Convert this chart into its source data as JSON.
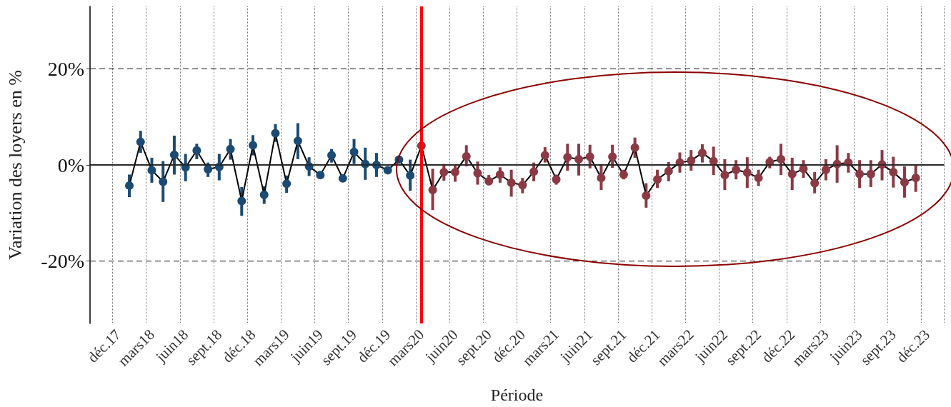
{
  "chart_data": {
    "type": "line",
    "xlabel": "Période",
    "ylabel": "Variation des loyers en %",
    "categories": [
      null,
      null,
      "déc.17",
      null,
      null,
      "mars18",
      null,
      null,
      "juin18",
      null,
      null,
      "sept.18",
      null,
      null,
      "déc.18",
      null,
      null,
      "mars19",
      null,
      null,
      "juin19",
      null,
      null,
      "sept.19",
      null,
      null,
      "déc.19",
      null,
      null,
      "mars20",
      null,
      null,
      "juin20",
      null,
      null,
      "sept.20",
      null,
      null,
      "déc.20",
      null,
      null,
      "mars21",
      null,
      null,
      "juin21",
      null,
      null,
      "sept.21",
      null,
      null,
      "déc.21",
      null,
      null,
      "mars22",
      null,
      null,
      "juin22",
      null,
      null,
      "sept.22",
      null,
      null,
      "déc.22",
      null,
      null,
      "mars23",
      null,
      null,
      "juin23",
      null,
      null,
      "sept.23",
      null,
      null,
      "déc.23",
      null
    ],
    "series": [
      {
        "color": "#000000",
        "marker": "circle",
        "line_style": "solid",
        "values": [
          null,
          null,
          null,
          -4.3,
          4.8,
          -1.1,
          -3.5,
          2.1,
          -0.5,
          3.0,
          -0.9,
          -0.4,
          3.3,
          -7.5,
          4.1,
          -6.2,
          6.6,
          -3.9,
          5.0,
          -0.3,
          -2.1,
          2.0,
          -2.8,
          2.7,
          0.2,
          0.0,
          -1.1,
          1.1,
          -2.2,
          4.0,
          -5.2,
          -1.5,
          -1.5,
          1.8,
          -1.7,
          -3.4,
          -2.0,
          -3.7,
          -4.2,
          -1.4,
          2.0,
          -3.0,
          1.6,
          1.2,
          1.7,
          -2.7,
          1.7,
          -2.0,
          3.6,
          -6.4,
          -3.0,
          -1.3,
          0.5,
          0.9,
          2.5,
          0.8,
          -2.1,
          -1.0,
          -1.6,
          -2.7,
          0.6,
          1.2,
          -1.9,
          -0.8,
          -3.8,
          -1.0,
          0.2,
          0.5,
          -1.9,
          -1.9,
          0.1,
          -1.5,
          -3.6,
          -2.7,
          null,
          null
        ],
        "colors": [
          null,
          null,
          null,
          "#1b4b72",
          "#1b4b72",
          "#1b4b72",
          "#1b4b72",
          "#1b4b72",
          "#1b4b72",
          "#1b4b72",
          "#1b4b72",
          "#1b4b72",
          "#1b4b72",
          "#1b4b72",
          "#1b4b72",
          "#1b4b72",
          "#1b4b72",
          "#1b4b72",
          "#1b4b72",
          "#1b4b72",
          "#1b4b72",
          "#1b4b72",
          "#1b4b72",
          "#1b4b72",
          "#1b4b72",
          "#1b4b72",
          "#1b4b72",
          "#1b4b72",
          "#1b4b72",
          "#8b3a45",
          "#8b3a45",
          "#8b3a45",
          "#8b3a45",
          "#8b3a45",
          "#8b3a45",
          "#8b3a45",
          "#8b3a45",
          "#8b3a45",
          "#8b3a45",
          "#8b3a45",
          "#8b3a45",
          "#8b3a45",
          "#8b3a45",
          "#8b3a45",
          "#8b3a45",
          "#8b3a45",
          "#8b3a45",
          "#8b3a45",
          "#8b3a45",
          "#8b3a45",
          "#8b3a45",
          "#8b3a45",
          "#8b3a45",
          "#8b3a45",
          "#8b3a45",
          "#8b3a45",
          "#8b3a45",
          "#8b3a45",
          "#8b3a45",
          "#8b3a45",
          "#8b3a45",
          "#8b3a45",
          "#8b3a45",
          "#8b3a45",
          "#8b3a45",
          "#8b3a45",
          "#8b3a45",
          "#8b3a45",
          "#8b3a45",
          "#8b3a45",
          "#8b3a45",
          "#8b3a45",
          "#8b3a45",
          "#8b3a45",
          null,
          null
        ],
        "errors": [
          null,
          null,
          null,
          [
            -6.7,
            -2.0
          ],
          [
            2.5,
            7.1
          ],
          [
            -3.7,
            1.5
          ],
          [
            -7.7,
            0.8
          ],
          [
            -2.0,
            6.1
          ],
          [
            -3.4,
            2.3
          ],
          [
            1.2,
            4.4
          ],
          [
            -2.5,
            0.5
          ],
          [
            -3.2,
            2.3
          ],
          [
            1.1,
            5.4
          ],
          [
            -10.6,
            -4.6
          ],
          [
            2.0,
            6.2
          ],
          [
            -8.1,
            -4.4
          ],
          [
            4.8,
            8.5
          ],
          [
            -5.8,
            -2.2
          ],
          [
            1.2,
            8.7
          ],
          [
            -2.3,
            1.6
          ],
          null,
          [
            0.5,
            3.3
          ],
          null,
          [
            0.2,
            5.4
          ],
          [
            -3.1,
            3.6
          ],
          [
            -2.5,
            2.5
          ],
          [
            -1.5,
            -0.5
          ],
          [
            0.5,
            1.8
          ],
          [
            -5.4,
            1.1
          ],
          [
            3.2,
            5.2
          ],
          [
            -9.4,
            -0.8
          ],
          [
            -3.3,
            0.2
          ],
          [
            -3.5,
            0.1
          ],
          [
            -0.3,
            4.1
          ],
          [
            -4.1,
            0.7
          ],
          [
            -4.2,
            -2.1
          ],
          [
            -3.7,
            -0.5
          ],
          [
            -6.6,
            -1.0
          ],
          [
            -5.9,
            -2.7
          ],
          [
            -3.4,
            0.5
          ],
          [
            0.5,
            3.7
          ],
          [
            -4.1,
            -2.0
          ],
          [
            -1.2,
            4.4
          ],
          [
            -2.2,
            4.4
          ],
          [
            -0.7,
            4.2
          ],
          [
            -5.2,
            0.0
          ],
          [
            -0.6,
            4.2
          ],
          [
            -3.0,
            -1.0
          ],
          [
            1.5,
            5.7
          ],
          [
            -8.9,
            -3.8
          ],
          [
            -4.8,
            -1.0
          ],
          [
            -3.4,
            0.6
          ],
          [
            -1.6,
            2.6
          ],
          [
            -1.2,
            3.1
          ],
          [
            0.5,
            4.3
          ],
          [
            -2.1,
            3.8
          ],
          [
            -5.2,
            1.2
          ],
          [
            -3.0,
            1.0
          ],
          [
            -4.8,
            1.6
          ],
          [
            -4.4,
            -1.0
          ],
          [
            -0.7,
            1.7
          ],
          [
            -2.1,
            4.4
          ],
          [
            -5.2,
            1.5
          ],
          [
            -2.7,
            1.0
          ],
          [
            -5.9,
            -1.5
          ],
          [
            -3.2,
            1.2
          ],
          [
            -3.7,
            4.1
          ],
          [
            -1.6,
            2.5
          ],
          [
            -4.8,
            1.0
          ],
          [
            -4.6,
            1.0
          ],
          [
            -3.2,
            3.1
          ],
          [
            -4.7,
            1.7
          ],
          [
            -6.8,
            -0.3
          ],
          [
            -5.6,
            0.0
          ],
          null,
          null
        ]
      }
    ],
    "ylim": [
      -33,
      33
    ],
    "yticks": [
      {
        "value": -20,
        "label": "-20%"
      },
      {
        "value": 0,
        "label": "0%"
      },
      {
        "value": 20,
        "label": "20%"
      }
    ],
    "grid": true,
    "ref_lines": [
      {
        "axis": "y",
        "value": 0,
        "color": "#222222",
        "line_style": "solid"
      },
      {
        "axis": "x",
        "value": "mars20",
        "color": "#ff0000",
        "line_style": "solid"
      }
    ]
  }
}
